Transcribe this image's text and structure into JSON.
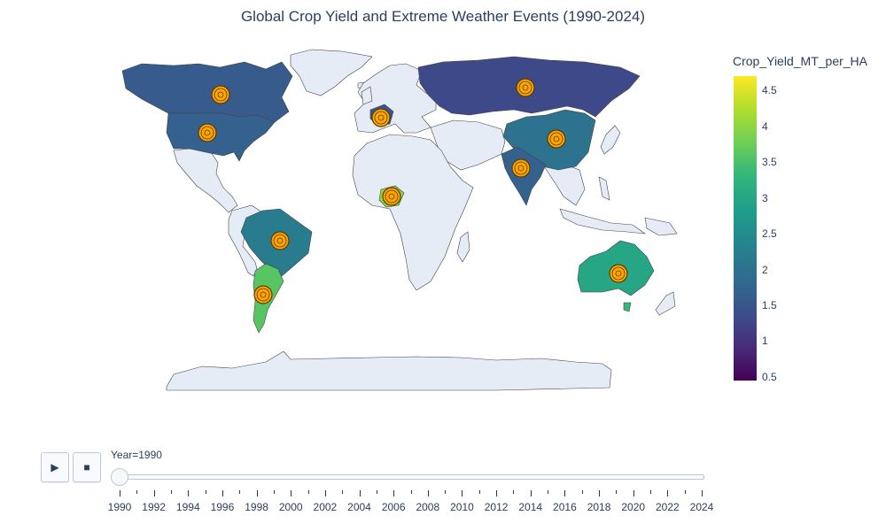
{
  "title": "Global Crop Yield and Extreme Weather Events (1990-2024)",
  "colorbar": {
    "title": "Crop_Yield_MT_per_HA",
    "ticks": [
      "4.5",
      "4",
      "3.5",
      "3",
      "2.5",
      "2",
      "1.5",
      "1",
      "0.5"
    ],
    "tick_values": [
      4.5,
      4,
      3.5,
      3,
      2.5,
      2,
      1.5,
      1,
      0.5
    ],
    "range": [
      0.45,
      4.7
    ],
    "colorscale": "Viridis"
  },
  "controls": {
    "play_icon": "play-icon",
    "stop_icon": "stop-icon",
    "play_glyph": "▶",
    "stop_glyph": "■"
  },
  "slider": {
    "current_label": "Year=1990",
    "range": [
      1990,
      2024
    ],
    "current": 1990,
    "tick_labels": [
      "1990",
      "1992",
      "1994",
      "1996",
      "1998",
      "2000",
      "2002",
      "2004",
      "2006",
      "2008",
      "2010",
      "2012",
      "2014",
      "2016",
      "2018",
      "2020",
      "2022",
      "2024"
    ]
  },
  "chart_data": {
    "type": "choropleth",
    "projection": "natural earth",
    "year": 1990,
    "colorbar_title": "Crop_Yield_MT_per_HA",
    "countries": [
      {
        "name": "Canada",
        "yield": 1.6
      },
      {
        "name": "USA",
        "yield": 1.7
      },
      {
        "name": "Russia",
        "yield": 1.3
      },
      {
        "name": "China",
        "yield": 2.0
      },
      {
        "name": "India",
        "yield": 1.7
      },
      {
        "name": "France",
        "yield": 1.5
      },
      {
        "name": "Brazil",
        "yield": 2.2
      },
      {
        "name": "Argentina",
        "yield": 3.6
      },
      {
        "name": "Australia",
        "yield": 3.0
      },
      {
        "name": "Nigeria",
        "yield": 4.0
      }
    ],
    "marker_color": "#ffa500"
  }
}
